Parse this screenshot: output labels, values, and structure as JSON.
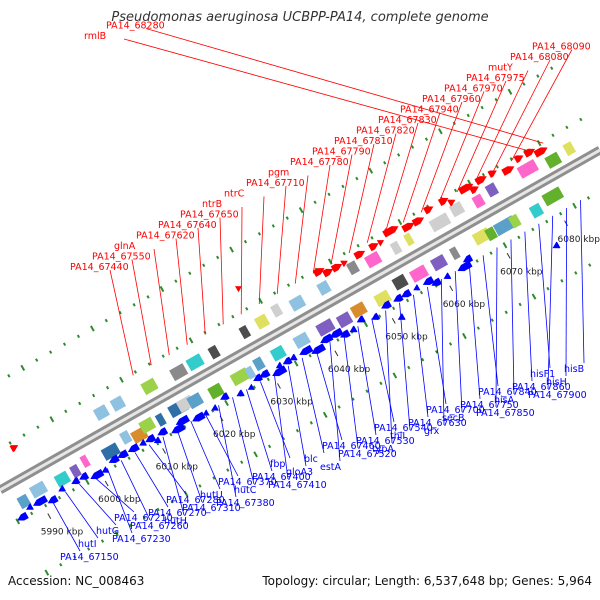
{
  "title": "Pseudomonas aeruginosa UCBPP-PA14, complete genome",
  "footer": {
    "accession": "Accession: NC_008463",
    "summary": "Topology: circular; Length: 6,537,648 bp; Genes: 5,964"
  },
  "colors": {
    "forward": "#ff0000",
    "reverse": "#0000ff",
    "backbone": "#aaaaaa",
    "tick_forward": "#2e8b2e",
    "tick_reverse": "#2e8b2e"
  },
  "axis_ticks": [
    "5990 kbp",
    "6000 kbp",
    "6010 kbp",
    "6020 kbp",
    "6030 kbp",
    "6040 kbp",
    "6050 kbp",
    "6060 kbp",
    "6070 kbp",
    "6080 kbp"
  ],
  "forward_labels": [
    "PA14_67440",
    "PA14_67550",
    "glnA",
    "PA14_67620",
    "PA14_67640",
    "PA14_67650",
    "ntrB",
    "ntrC",
    "PA14_67710",
    "pgm",
    "PA14_67780",
    "PA14_67790",
    "PA14_67810",
    "PA14_67820",
    "PA14_67830",
    "PA14_67940",
    "PA14_67960",
    "PA14_67970",
    "PA14_67975",
    "mutY",
    "PA14_68080",
    "PA14_68090",
    "rmlB",
    "PA14_68280"
  ],
  "reverse_labels": [
    "PA14_67150",
    "hutI",
    "hutG",
    "PA14_67210",
    "PA14_67230",
    "PA14_67260",
    "PA14_67270",
    "PA14_67280",
    "hutH",
    "PA14_67310",
    "hutU",
    "PA14_67370",
    "PA14_67380",
    "hutC",
    "PA14_67400",
    "fbp",
    "PA14_67410",
    "gloA3",
    "blc",
    "PA14_67460",
    "estA",
    "PA14_67520",
    "PA14_67530",
    "PA14_67540",
    "typA",
    "thiI",
    "PA14_67630",
    "PA14_67700",
    "grx",
    "secB",
    "PA14_67750",
    "PA14_67840",
    "PA14_67850",
    "hisA",
    "PA14_67860",
    "hisF1",
    "PA14_67900",
    "hisH",
    "hisB"
  ]
}
